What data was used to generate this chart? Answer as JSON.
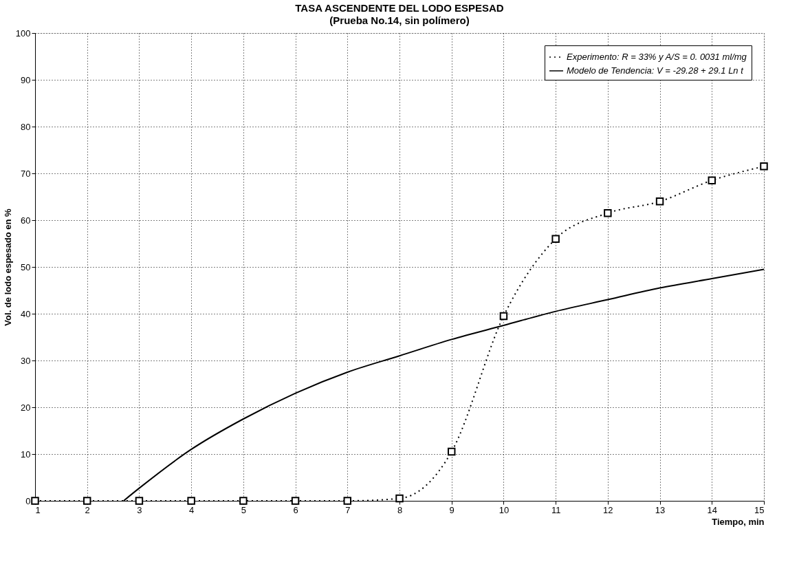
{
  "chart_data": {
    "type": "line",
    "title": "TASA ASCENDENTE DEL LODO ESPESAD",
    "subtitle": "(Prueba No.14, sin polímero)",
    "xlabel": "Tiempo, min",
    "ylabel": "Vol. de lodo espesado en %",
    "xlim": [
      1,
      15
    ],
    "xticks": [
      1,
      2,
      3,
      4,
      5,
      6,
      7,
      8,
      9,
      10,
      11,
      12,
      13,
      14,
      15
    ],
    "ylim": [
      0,
      100
    ],
    "yticks": [
      0,
      10,
      20,
      30,
      40,
      50,
      60,
      70,
      80,
      90,
      100
    ],
    "grid": true,
    "legend": "top right",
    "series": [
      {
        "name": "Experimento: R = 33% y A/S = 0. 0031 ml/mg",
        "color": "#000000",
        "marker": "square",
        "line_style": "dotted",
        "x": [
          1,
          2,
          3,
          4,
          5,
          6,
          7,
          8,
          9,
          10,
          11,
          12,
          13,
          14,
          15
        ],
        "values": [
          0,
          0,
          0,
          0,
          0,
          0,
          0,
          0.5,
          10.5,
          39.5,
          56,
          61.5,
          64,
          68.5,
          71.5
        ]
      },
      {
        "name": "Modelo de Tendencia: V = -29.28 + 29.1 Ln t",
        "color": "#000000",
        "marker": "none",
        "line_style": "solid",
        "x": [
          2.7,
          3,
          4,
          5,
          6,
          7,
          8,
          9,
          10,
          11,
          12,
          13,
          14,
          15
        ],
        "values": [
          0,
          2.7,
          11,
          17.5,
          23,
          27.5,
          31,
          34.5,
          37.5,
          40.5,
          43,
          45.5,
          47.5,
          49.5
        ]
      }
    ]
  }
}
